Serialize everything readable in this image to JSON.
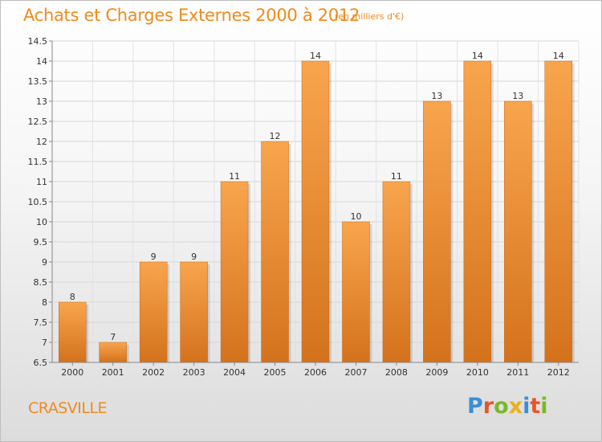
{
  "header": {
    "title": "Achats et Charges Externes 2000 à 2012",
    "subtitle": "(en milliers d'€)"
  },
  "footer": {
    "commune": "CRASVILLE",
    "logo_letters": [
      "P",
      "r",
      "o",
      "x",
      "i",
      "t",
      "i"
    ],
    "logo_colors": [
      "#3a8fd6",
      "#e8552b",
      "#7ab828",
      "#e8b21c",
      "#3a8fd6",
      "#e8552b",
      "#7ab828"
    ]
  },
  "colors": {
    "bar_top": "#f8a54e",
    "bar_bottom": "#d4721c",
    "title": "#f08a1c"
  },
  "chart_data": {
    "type": "bar",
    "categories": [
      "2000",
      "2001",
      "2002",
      "2003",
      "2004",
      "2005",
      "2006",
      "2007",
      "2008",
      "2009",
      "2010",
      "2011",
      "2012"
    ],
    "values": [
      8,
      7,
      9,
      9,
      11,
      12,
      14,
      10,
      11,
      13,
      14,
      13,
      14
    ],
    "data_labels": [
      "8",
      "7",
      "9",
      "9",
      "11",
      "12",
      "14",
      "10",
      "11",
      "13",
      "14",
      "13",
      "14"
    ],
    "yticks": [
      "6.5",
      "7",
      "7.5",
      "8",
      "8.5",
      "9",
      "9.5",
      "10",
      "10.5",
      "11",
      "11.5",
      "12",
      "12.5",
      "13",
      "13.5",
      "14",
      "14.5"
    ],
    "ylim": [
      6.5,
      14.5
    ],
    "grid": true,
    "title": "Achats et Charges Externes 2000 à 2012",
    "xlabel": "",
    "ylabel": ""
  }
}
